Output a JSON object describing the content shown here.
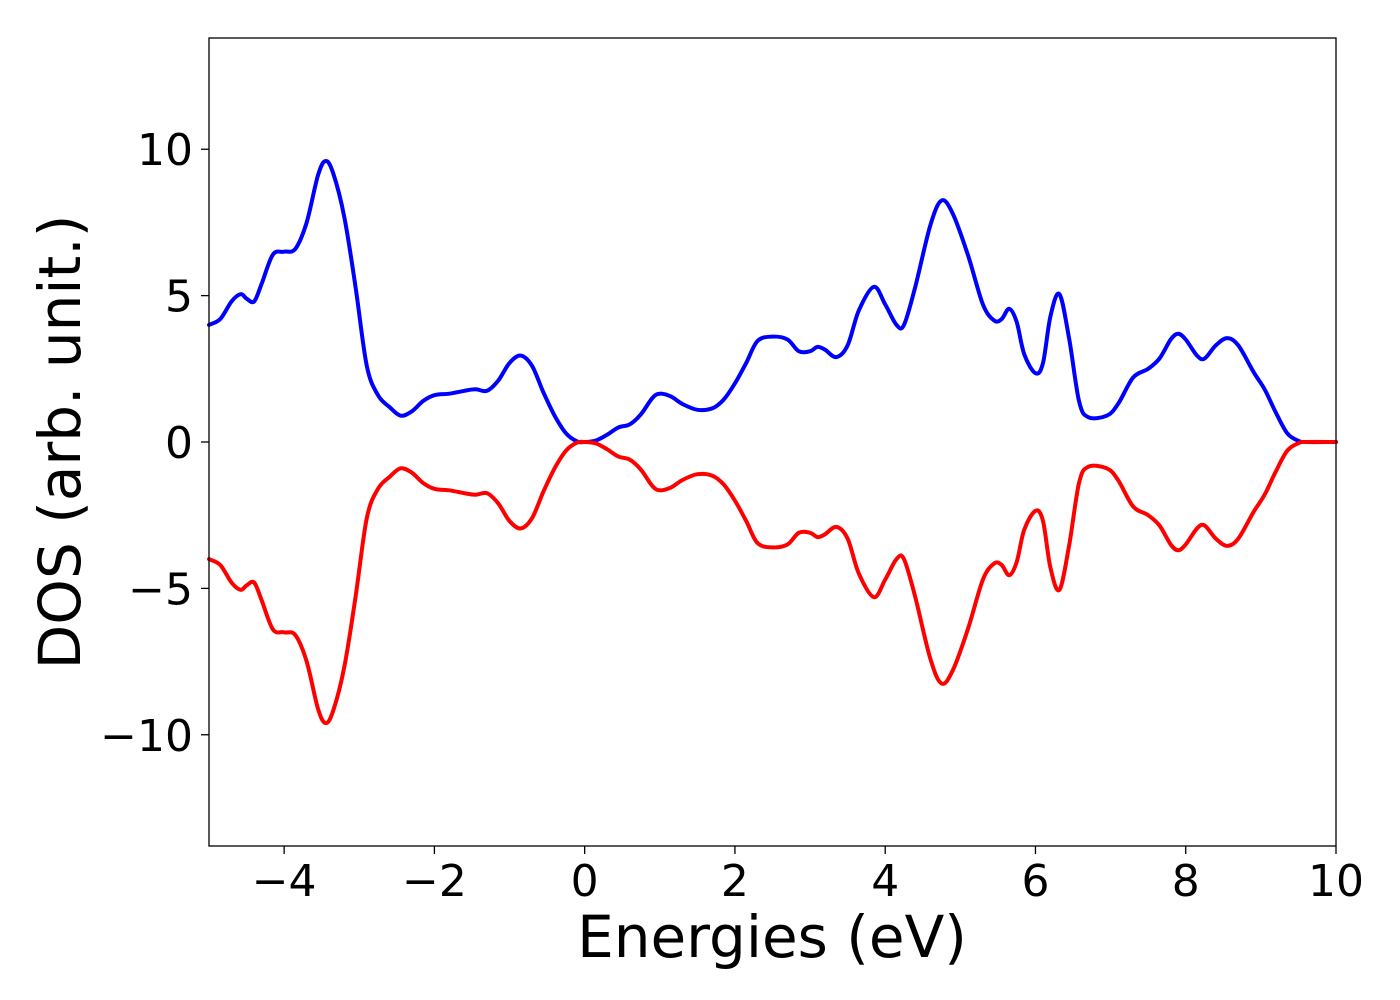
{
  "chart_data": {
    "type": "line",
    "title": "",
    "xlabel": "Energies (eV)",
    "ylabel": "DOS (arb. unit.)",
    "xlim": [
      -5,
      10
    ],
    "ylim": [
      -13.8,
      13.8
    ],
    "xticks": [
      -4,
      -2,
      0,
      2,
      4,
      6,
      8,
      10
    ],
    "xtick_labels": [
      "−4",
      "−2",
      "0",
      "2",
      "4",
      "6",
      "8",
      "10"
    ],
    "yticks": [
      -10,
      -5,
      0,
      5,
      10
    ],
    "ytick_labels": [
      "−10",
      "−5",
      "0",
      "5",
      "10"
    ],
    "grid": false,
    "legend": "none",
    "series": [
      {
        "color": "#0000ff",
        "points": [
          [
            -5.0,
            4.0
          ],
          [
            -4.85,
            4.2
          ],
          [
            -4.7,
            4.8
          ],
          [
            -4.58,
            5.05
          ],
          [
            -4.5,
            4.9
          ],
          [
            -4.4,
            4.8
          ],
          [
            -4.3,
            5.4
          ],
          [
            -4.15,
            6.4
          ],
          [
            -4.0,
            6.5
          ],
          [
            -3.85,
            6.6
          ],
          [
            -3.7,
            7.5
          ],
          [
            -3.55,
            9.1
          ],
          [
            -3.45,
            9.6
          ],
          [
            -3.35,
            9.2
          ],
          [
            -3.2,
            7.7
          ],
          [
            -3.05,
            5.3
          ],
          [
            -2.9,
            2.6
          ],
          [
            -2.75,
            1.6
          ],
          [
            -2.6,
            1.2
          ],
          [
            -2.45,
            0.9
          ],
          [
            -2.3,
            1.05
          ],
          [
            -2.15,
            1.4
          ],
          [
            -2.0,
            1.6
          ],
          [
            -1.8,
            1.65
          ],
          [
            -1.6,
            1.75
          ],
          [
            -1.45,
            1.8
          ],
          [
            -1.3,
            1.75
          ],
          [
            -1.15,
            2.1
          ],
          [
            -1.0,
            2.7
          ],
          [
            -0.85,
            2.95
          ],
          [
            -0.7,
            2.6
          ],
          [
            -0.55,
            1.7
          ],
          [
            -0.4,
            0.9
          ],
          [
            -0.25,
            0.3
          ],
          [
            -0.1,
            0.02
          ],
          [
            0.0,
            0.0
          ],
          [
            0.15,
            0.05
          ],
          [
            0.3,
            0.25
          ],
          [
            0.45,
            0.5
          ],
          [
            0.6,
            0.6
          ],
          [
            0.75,
            0.95
          ],
          [
            0.9,
            1.5
          ],
          [
            1.0,
            1.65
          ],
          [
            1.15,
            1.55
          ],
          [
            1.3,
            1.3
          ],
          [
            1.5,
            1.1
          ],
          [
            1.7,
            1.15
          ],
          [
            1.85,
            1.45
          ],
          [
            2.0,
            2.0
          ],
          [
            2.15,
            2.7
          ],
          [
            2.3,
            3.45
          ],
          [
            2.5,
            3.6
          ],
          [
            2.7,
            3.5
          ],
          [
            2.85,
            3.1
          ],
          [
            3.0,
            3.1
          ],
          [
            3.1,
            3.25
          ],
          [
            3.2,
            3.15
          ],
          [
            3.35,
            2.9
          ],
          [
            3.5,
            3.3
          ],
          [
            3.65,
            4.5
          ],
          [
            3.85,
            5.3
          ],
          [
            4.0,
            4.7
          ],
          [
            4.15,
            4.0
          ],
          [
            4.25,
            4.0
          ],
          [
            4.4,
            5.3
          ],
          [
            4.6,
            7.4
          ],
          [
            4.75,
            8.25
          ],
          [
            4.9,
            7.8
          ],
          [
            5.1,
            6.4
          ],
          [
            5.3,
            4.7
          ],
          [
            5.45,
            4.15
          ],
          [
            5.55,
            4.2
          ],
          [
            5.65,
            4.55
          ],
          [
            5.75,
            4.1
          ],
          [
            5.85,
            3.0
          ],
          [
            6.0,
            2.35
          ],
          [
            6.1,
            2.7
          ],
          [
            6.2,
            4.3
          ],
          [
            6.32,
            5.05
          ],
          [
            6.45,
            3.5
          ],
          [
            6.58,
            1.4
          ],
          [
            6.7,
            0.85
          ],
          [
            6.95,
            0.9
          ],
          [
            7.1,
            1.3
          ],
          [
            7.3,
            2.2
          ],
          [
            7.5,
            2.5
          ],
          [
            7.65,
            2.85
          ],
          [
            7.8,
            3.5
          ],
          [
            7.9,
            3.7
          ],
          [
            8.0,
            3.5
          ],
          [
            8.15,
            2.95
          ],
          [
            8.25,
            2.85
          ],
          [
            8.4,
            3.3
          ],
          [
            8.55,
            3.55
          ],
          [
            8.7,
            3.3
          ],
          [
            8.9,
            2.4
          ],
          [
            9.05,
            1.8
          ],
          [
            9.2,
            1.0
          ],
          [
            9.35,
            0.3
          ],
          [
            9.5,
            0.04
          ],
          [
            9.6,
            0.0
          ],
          [
            10.0,
            0.0
          ]
        ]
      },
      {
        "color": "#ff0000",
        "points": [
          [
            -5.0,
            -4.0
          ],
          [
            -4.85,
            -4.2
          ],
          [
            -4.7,
            -4.8
          ],
          [
            -4.58,
            -5.05
          ],
          [
            -4.5,
            -4.9
          ],
          [
            -4.4,
            -4.8
          ],
          [
            -4.3,
            -5.4
          ],
          [
            -4.15,
            -6.4
          ],
          [
            -4.0,
            -6.5
          ],
          [
            -3.85,
            -6.6
          ],
          [
            -3.7,
            -7.5
          ],
          [
            -3.55,
            -9.1
          ],
          [
            -3.45,
            -9.6
          ],
          [
            -3.35,
            -9.2
          ],
          [
            -3.2,
            -7.7
          ],
          [
            -3.05,
            -5.3
          ],
          [
            -2.9,
            -2.6
          ],
          [
            -2.75,
            -1.6
          ],
          [
            -2.6,
            -1.2
          ],
          [
            -2.45,
            -0.9
          ],
          [
            -2.3,
            -1.05
          ],
          [
            -2.15,
            -1.4
          ],
          [
            -2.0,
            -1.6
          ],
          [
            -1.8,
            -1.65
          ],
          [
            -1.6,
            -1.75
          ],
          [
            -1.45,
            -1.8
          ],
          [
            -1.3,
            -1.75
          ],
          [
            -1.15,
            -2.1
          ],
          [
            -1.0,
            -2.7
          ],
          [
            -0.85,
            -2.95
          ],
          [
            -0.7,
            -2.6
          ],
          [
            -0.55,
            -1.7
          ],
          [
            -0.4,
            -0.9
          ],
          [
            -0.25,
            -0.3
          ],
          [
            -0.1,
            -0.02
          ],
          [
            0.0,
            0.0
          ],
          [
            0.15,
            -0.05
          ],
          [
            0.3,
            -0.25
          ],
          [
            0.45,
            -0.5
          ],
          [
            0.6,
            -0.6
          ],
          [
            0.75,
            -0.95
          ],
          [
            0.9,
            -1.5
          ],
          [
            1.0,
            -1.65
          ],
          [
            1.15,
            -1.55
          ],
          [
            1.3,
            -1.3
          ],
          [
            1.5,
            -1.1
          ],
          [
            1.7,
            -1.15
          ],
          [
            1.85,
            -1.45
          ],
          [
            2.0,
            -2.0
          ],
          [
            2.15,
            -2.7
          ],
          [
            2.3,
            -3.45
          ],
          [
            2.5,
            -3.6
          ],
          [
            2.7,
            -3.5
          ],
          [
            2.85,
            -3.1
          ],
          [
            3.0,
            -3.1
          ],
          [
            3.1,
            -3.25
          ],
          [
            3.2,
            -3.15
          ],
          [
            3.35,
            -2.9
          ],
          [
            3.5,
            -3.3
          ],
          [
            3.65,
            -4.5
          ],
          [
            3.85,
            -5.3
          ],
          [
            4.0,
            -4.7
          ],
          [
            4.15,
            -4.0
          ],
          [
            4.25,
            -4.0
          ],
          [
            4.4,
            -5.3
          ],
          [
            4.6,
            -7.4
          ],
          [
            4.75,
            -8.25
          ],
          [
            4.9,
            -7.8
          ],
          [
            5.1,
            -6.4
          ],
          [
            5.3,
            -4.7
          ],
          [
            5.45,
            -4.15
          ],
          [
            5.55,
            -4.2
          ],
          [
            5.65,
            -4.55
          ],
          [
            5.75,
            -4.1
          ],
          [
            5.85,
            -3.0
          ],
          [
            6.0,
            -2.35
          ],
          [
            6.1,
            -2.7
          ],
          [
            6.2,
            -4.3
          ],
          [
            6.32,
            -5.05
          ],
          [
            6.45,
            -3.5
          ],
          [
            6.58,
            -1.4
          ],
          [
            6.7,
            -0.85
          ],
          [
            6.95,
            -0.9
          ],
          [
            7.1,
            -1.3
          ],
          [
            7.3,
            -2.2
          ],
          [
            7.5,
            -2.5
          ],
          [
            7.65,
            -2.85
          ],
          [
            7.8,
            -3.5
          ],
          [
            7.9,
            -3.7
          ],
          [
            8.0,
            -3.5
          ],
          [
            8.15,
            -2.95
          ],
          [
            8.25,
            -2.85
          ],
          [
            8.4,
            -3.3
          ],
          [
            8.55,
            -3.55
          ],
          [
            8.7,
            -3.3
          ],
          [
            8.9,
            -2.4
          ],
          [
            9.05,
            -1.8
          ],
          [
            9.2,
            -1.0
          ],
          [
            9.35,
            -0.3
          ],
          [
            9.5,
            -0.04
          ],
          [
            9.6,
            0.0
          ],
          [
            10.0,
            0.0
          ]
        ]
      }
    ]
  }
}
